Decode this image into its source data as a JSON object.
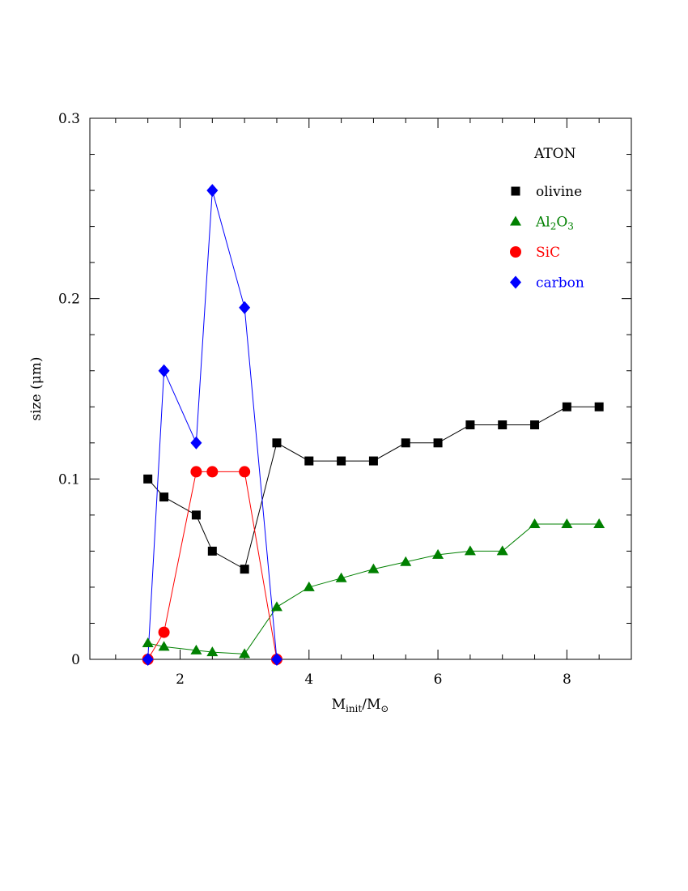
{
  "chart_data": {
    "type": "scatter",
    "title": "",
    "xlabel": "M_init/M_⊙",
    "xlabel_main": "M",
    "xlabel_sub": "init",
    "xlabel_mid": "/M",
    "xlabel_sub2": "⊙",
    "ylabel": "size (μm)",
    "xlim": [
      0.6,
      9.0
    ],
    "ylim": [
      0,
      0.3
    ],
    "x_ticks": [
      2,
      4,
      6,
      8
    ],
    "x_tick_labels": [
      "2",
      "4",
      "6",
      "8"
    ],
    "y_ticks": [
      0,
      0.1,
      0.2,
      0.3
    ],
    "y_tick_labels": [
      "0",
      "0.1",
      "0.2",
      "0.3"
    ],
    "legend_title": "ATON",
    "legend_placement": "top-right",
    "grid": false,
    "series": [
      {
        "name": "olivine",
        "name_html": "olivine",
        "marker": "square",
        "color": "#000000",
        "x": [
          1.5,
          1.75,
          2.25,
          2.5,
          3.0,
          3.5,
          4.0,
          4.5,
          5.0,
          5.5,
          6.0,
          6.5,
          7.0,
          7.5,
          8.0,
          8.5
        ],
        "values": [
          0.1,
          0.09,
          0.08,
          0.06,
          0.05,
          0.12,
          0.11,
          0.11,
          0.11,
          0.12,
          0.12,
          0.13,
          0.13,
          0.13,
          0.14,
          0.14
        ]
      },
      {
        "name": "Al2O3",
        "name_parts": [
          "Al",
          "2",
          "O",
          "3"
        ],
        "marker": "triangle",
        "color": "#008000",
        "x": [
          1.5,
          1.75,
          2.25,
          2.5,
          3.0,
          3.5,
          4.0,
          4.5,
          5.0,
          5.5,
          6.0,
          6.5,
          7.0,
          7.5,
          8.0,
          8.5
        ],
        "values": [
          0.009,
          0.007,
          0.005,
          0.004,
          0.003,
          0.029,
          0.04,
          0.045,
          0.05,
          0.054,
          0.058,
          0.06,
          0.06,
          0.075,
          0.075,
          0.075
        ]
      },
      {
        "name": "SiC",
        "marker": "circle",
        "color": "#ff0000",
        "x": [
          1.5,
          1.75,
          2.25,
          2.5,
          3.0,
          3.5
        ],
        "values": [
          0.0,
          0.015,
          0.104,
          0.104,
          0.104,
          0.0
        ]
      },
      {
        "name": "carbon",
        "marker": "diamond",
        "color": "#0000ff",
        "x": [
          1.5,
          1.75,
          2.25,
          2.5,
          3.0,
          3.5
        ],
        "values": [
          0.0,
          0.16,
          0.12,
          0.26,
          0.195,
          0.0
        ]
      }
    ]
  }
}
